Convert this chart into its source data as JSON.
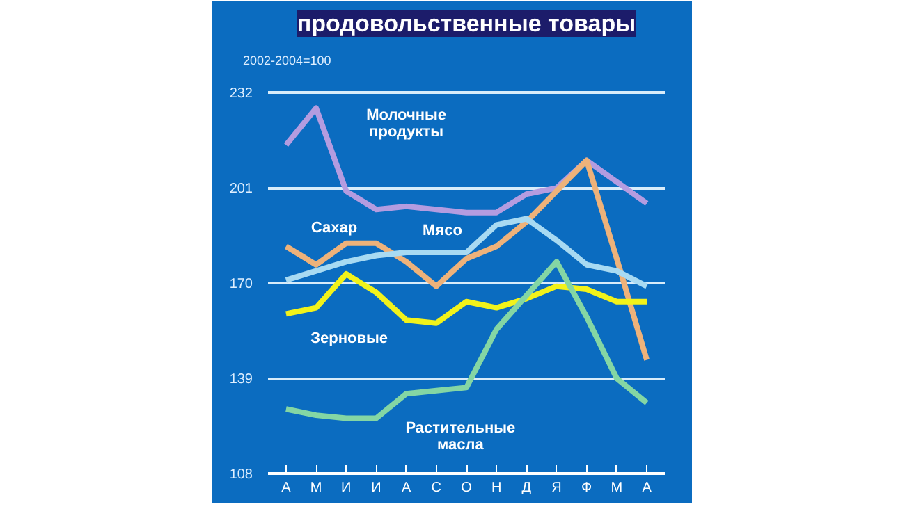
{
  "chart_data": {
    "type": "line",
    "title": "продовольственные товары",
    "subtitle": "2002-2004=100",
    "categories": [
      "А",
      "М",
      "И",
      "И",
      "А",
      "С",
      "О",
      "Н",
      "Д",
      "Я",
      "Ф",
      "М",
      "А"
    ],
    "ylim": [
      108,
      238
    ],
    "yticks": [
      108,
      139,
      170,
      201,
      232
    ],
    "grid": "y",
    "series": [
      {
        "name": "Молочные продукты",
        "color": "#b49ce0",
        "values": [
          215,
          227,
          200,
          194,
          195,
          194,
          193,
          193,
          199,
          201,
          210,
          203,
          196
        ]
      },
      {
        "name": "Сахар",
        "color": "#eeb27a",
        "values": [
          182,
          176,
          183,
          183,
          177,
          169,
          178,
          182,
          190,
          200,
          210,
          178,
          145
        ]
      },
      {
        "name": "Мясо",
        "color": "#a8daf2",
        "values": [
          171,
          174,
          177,
          179,
          180,
          180,
          180,
          189,
          191,
          184,
          176,
          174,
          169
        ]
      },
      {
        "name": "Зерновые",
        "color": "#f2f21a",
        "values": [
          160,
          162,
          173,
          167,
          158,
          157,
          164,
          162,
          165,
          169,
          168,
          164,
          164
        ]
      },
      {
        "name": "Растительные масла",
        "color": "#84d6a4",
        "values": [
          129,
          127,
          126,
          126,
          134,
          135,
          136,
          155,
          166,
          177,
          159,
          139,
          131
        ]
      }
    ]
  }
}
